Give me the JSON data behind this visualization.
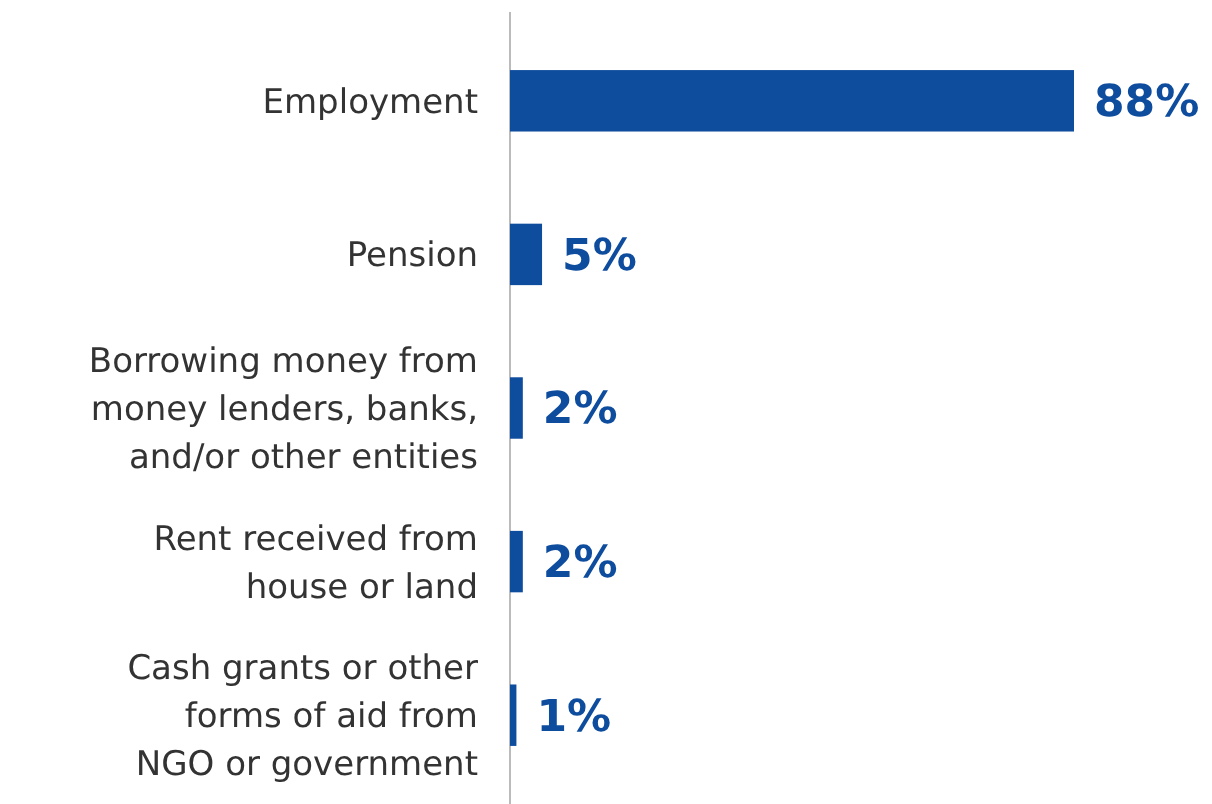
{
  "chart_data": {
    "type": "bar",
    "orientation": "horizontal",
    "categories": [
      "Employment",
      "Pension",
      "Borrowing money from\nmoney lenders, banks,\nand/or other entities",
      "Rent received from\nhouse or land",
      "Cash grants or other\nforms of aid from\nNGO or government"
    ],
    "values": [
      88,
      5,
      2,
      2,
      1
    ],
    "value_labels": [
      "88%",
      "5%",
      "2%",
      "2%",
      "1%"
    ],
    "color": "#0e4c9e"
  }
}
